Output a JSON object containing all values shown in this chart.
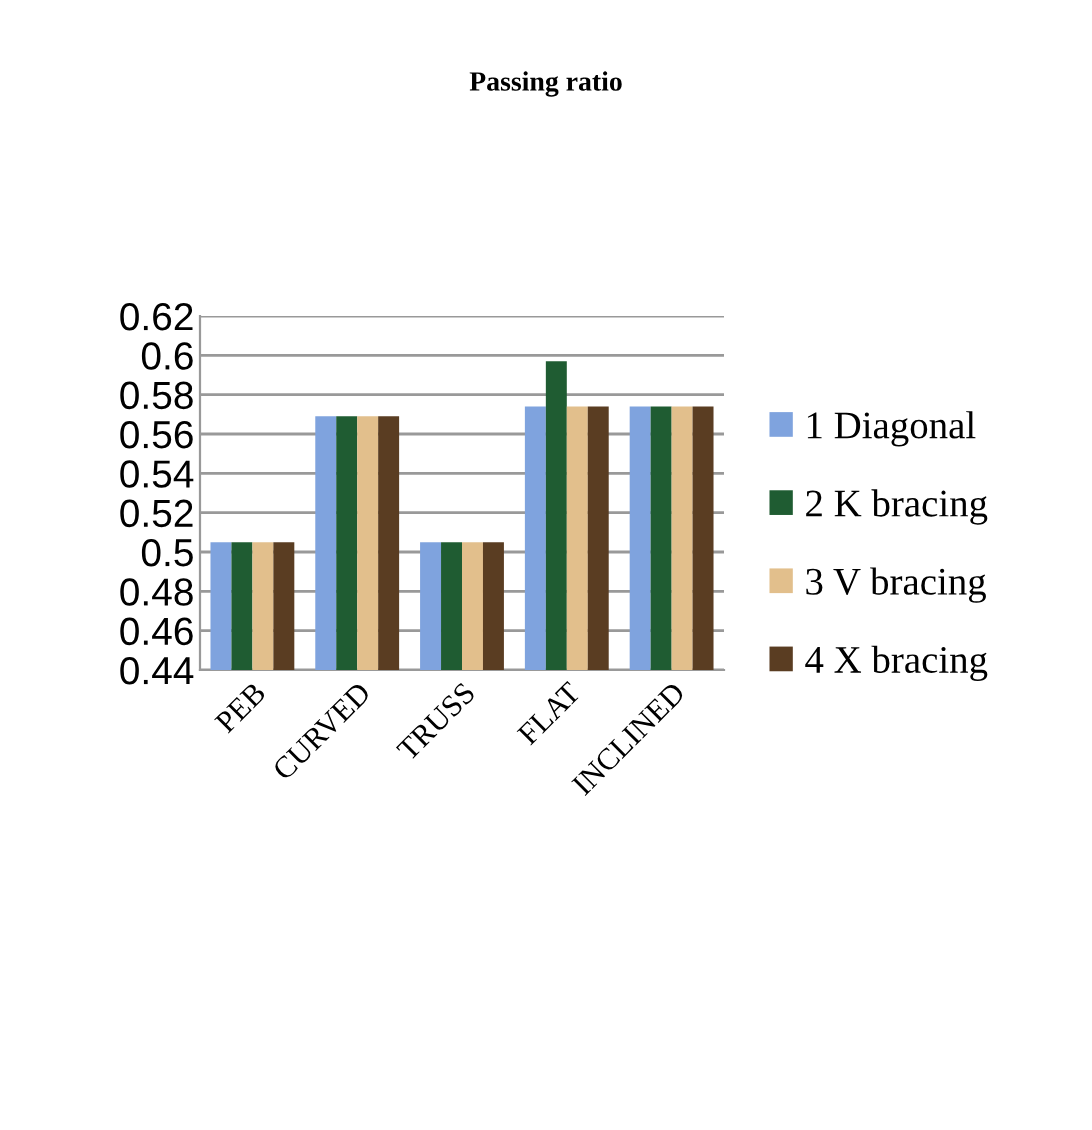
{
  "chart_data": {
    "type": "bar",
    "title": "Passing ratio",
    "categories": [
      "PEB",
      "CURVED",
      "TRUSS",
      "FLAT",
      "INCLINED"
    ],
    "series": [
      {
        "name": "1 Diagonal",
        "color": "#7fa3de",
        "values": [
          0.505,
          0.569,
          0.505,
          0.574,
          0.574
        ]
      },
      {
        "name": "2 K bracing",
        "color": "#1f5c32",
        "values": [
          0.505,
          0.569,
          0.505,
          0.597,
          0.574
        ]
      },
      {
        "name": "3 V bracing",
        "color": "#e2bf8c",
        "values": [
          0.505,
          0.569,
          0.505,
          0.574,
          0.574
        ]
      },
      {
        "name": "4 X bracing",
        "color": "#5a3d22",
        "values": [
          0.505,
          0.569,
          0.505,
          0.574,
          0.574
        ]
      }
    ],
    "ylim": [
      0.44,
      0.62
    ],
    "yticks": [
      0.44,
      0.46,
      0.48,
      0.5,
      0.52,
      0.54,
      0.56,
      0.58,
      0.6,
      0.62
    ],
    "grid": "y",
    "legend": "right"
  }
}
